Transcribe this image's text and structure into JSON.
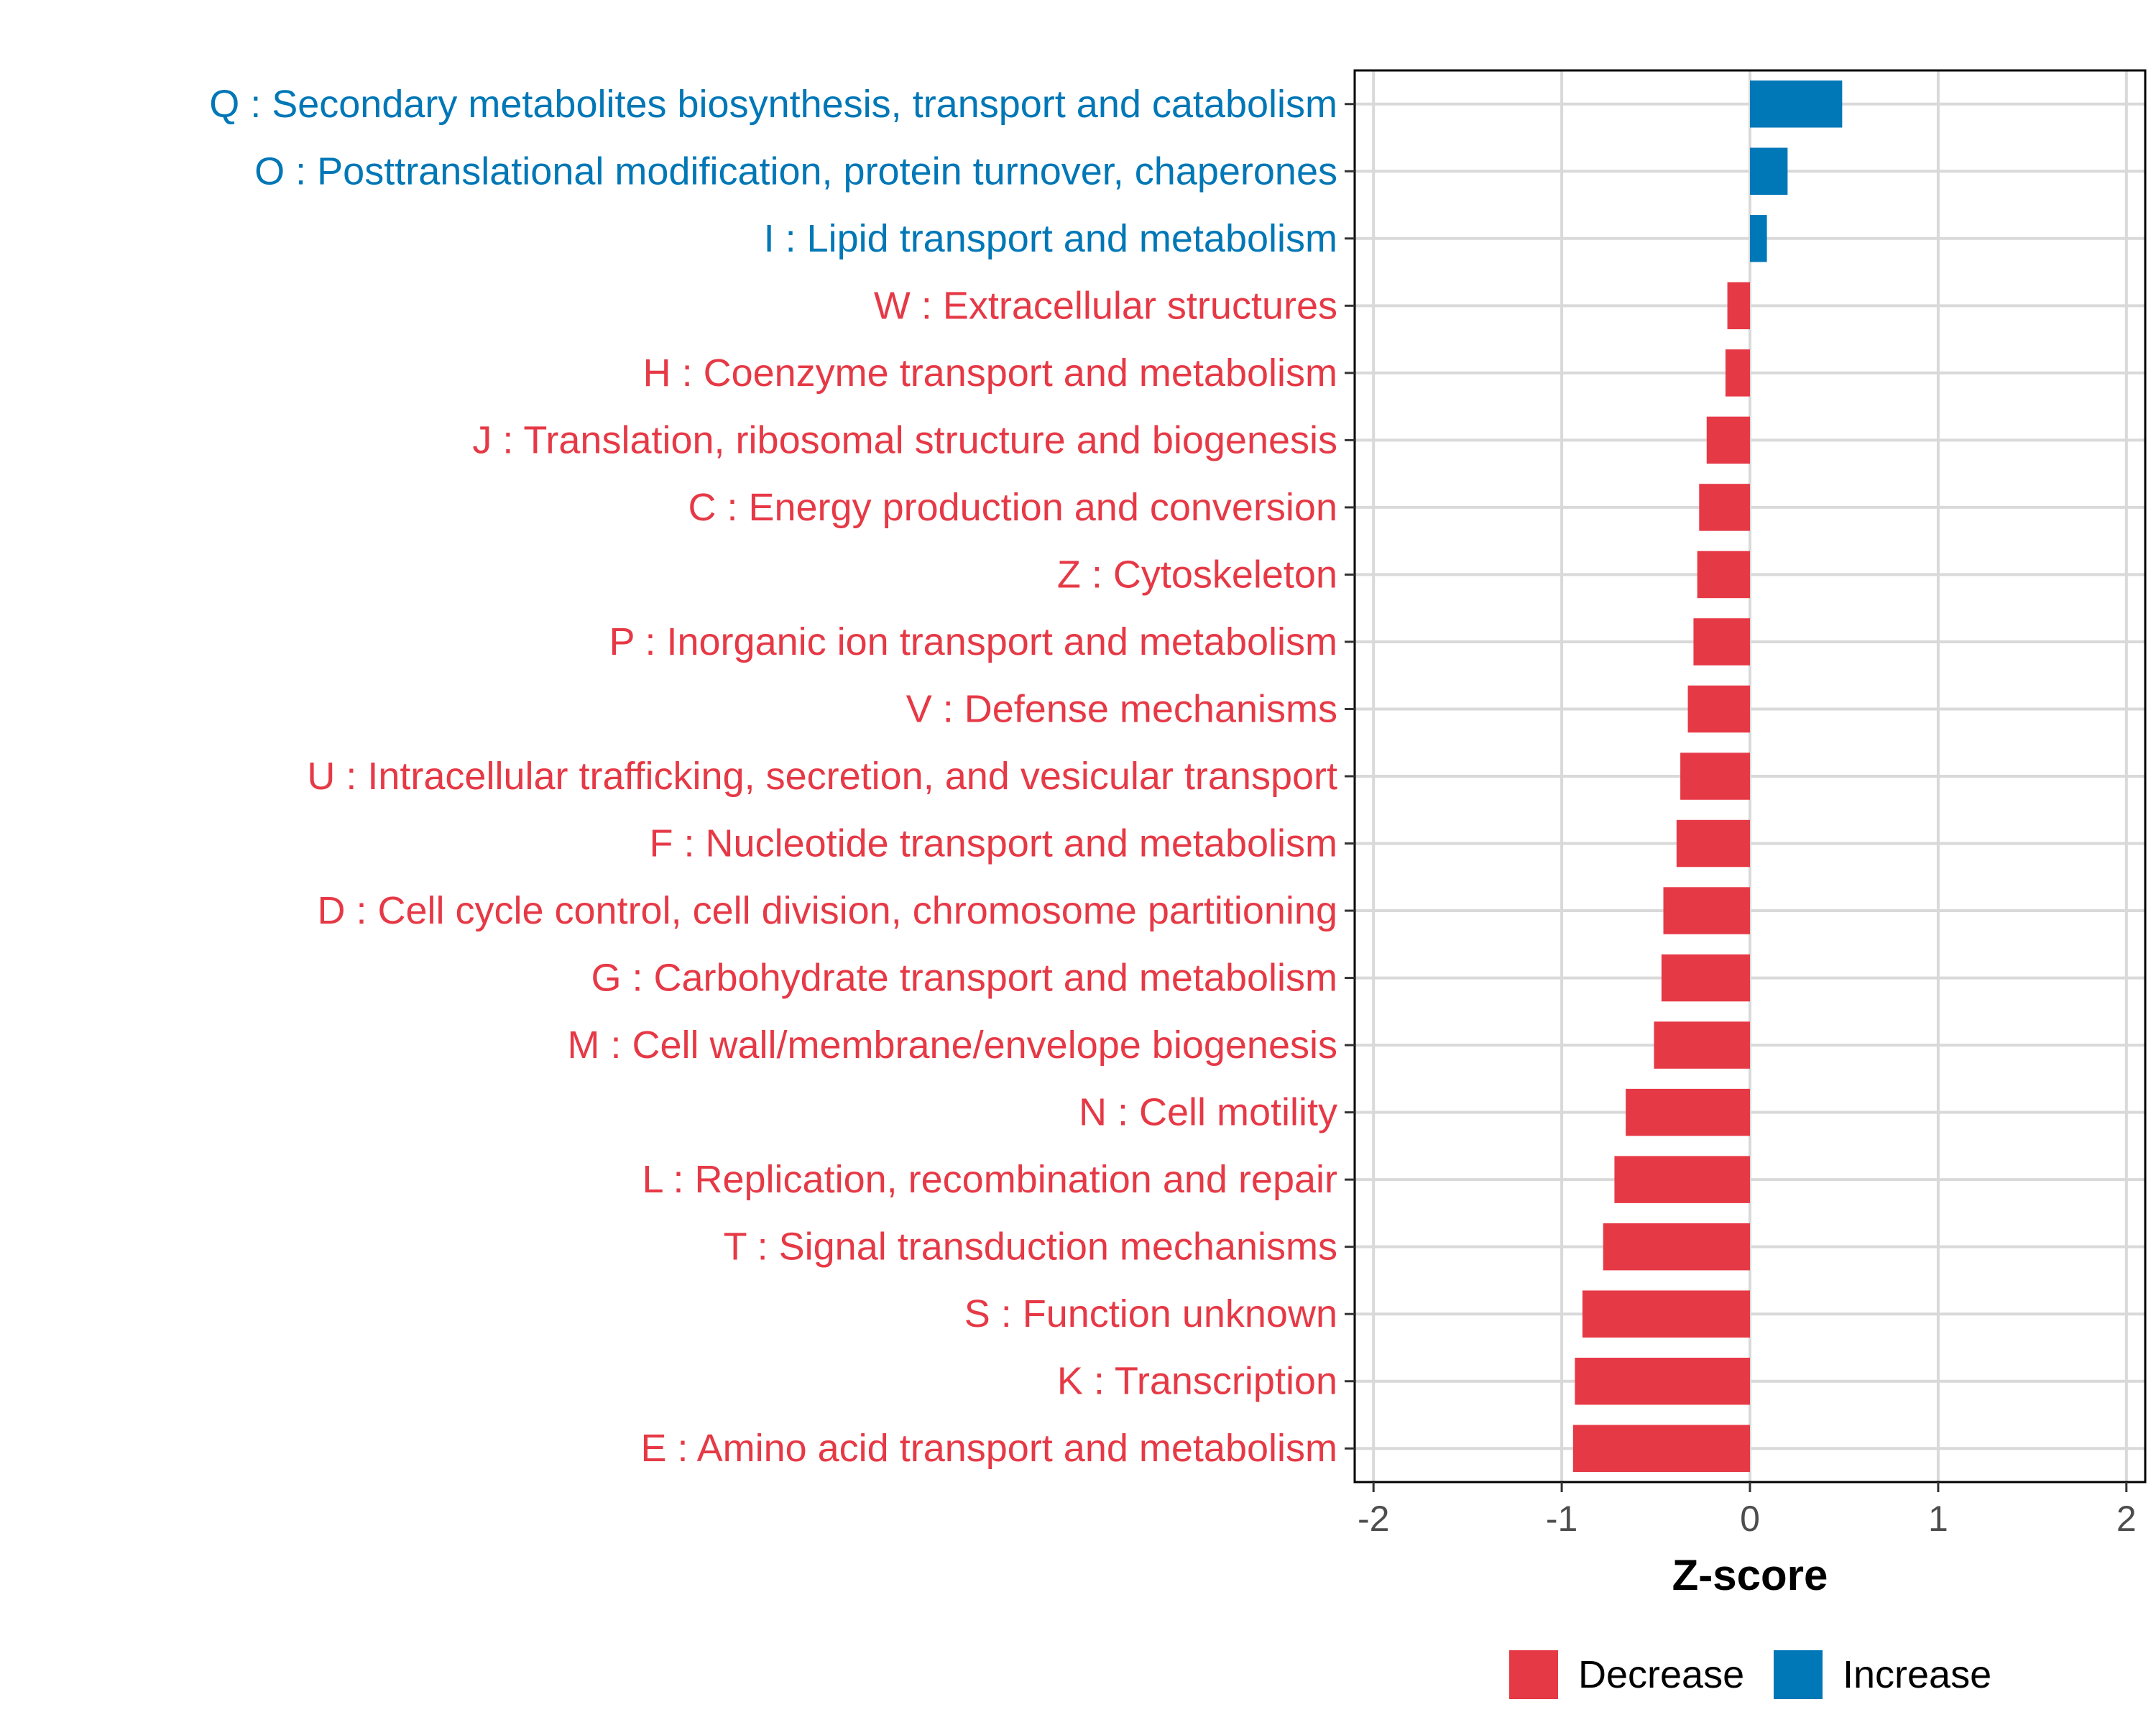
{
  "chart_data": {
    "type": "bar",
    "orientation": "horizontal",
    "xlabel": "Z-score",
    "xlim": [
      -2.1,
      2.1
    ],
    "xticks": [
      -2,
      -1,
      0,
      1,
      2
    ],
    "xtick_labels": [
      "-2",
      "-1",
      "0",
      "1",
      "2"
    ],
    "grid": true,
    "legend_position": "bottom",
    "colors": {
      "decrease": "#E63946",
      "increase": "#0077B6"
    },
    "legend": [
      {
        "label": "Decrease",
        "color": "#E63946"
      },
      {
        "label": "Increase",
        "color": "#0077B6"
      }
    ],
    "categories": [
      "Q : Secondary metabolites biosynthesis, transport and catabolism",
      "O : Posttranslational modification, protein turnover, chaperones",
      "I : Lipid transport and metabolism",
      "W : Extracellular structures",
      "H : Coenzyme transport and metabolism",
      "J : Translation, ribosomal structure and biogenesis",
      "C : Energy production and conversion",
      "Z : Cytoskeleton",
      "P : Inorganic ion transport and metabolism",
      "V : Defense mechanisms",
      "U : Intracellular trafficking, secretion, and vesicular transport",
      "F : Nucleotide transport and metabolism",
      "D : Cell cycle control, cell division, chromosome partitioning",
      "G : Carbohydrate transport and metabolism",
      "M : Cell wall/membrane/envelope biogenesis",
      "N : Cell motility",
      "L : Replication, recombination and repair",
      "T : Signal transduction mechanisms",
      "S : Function unknown",
      "K : Transcription",
      "E : Amino acid transport and metabolism"
    ],
    "values": [
      0.49,
      0.2,
      0.09,
      -0.12,
      -0.13,
      -0.23,
      -0.27,
      -0.28,
      -0.3,
      -0.33,
      -0.37,
      -0.39,
      -0.46,
      -0.47,
      -0.51,
      -0.66,
      -0.72,
      -0.78,
      -0.89,
      -0.93,
      -0.94
    ]
  }
}
